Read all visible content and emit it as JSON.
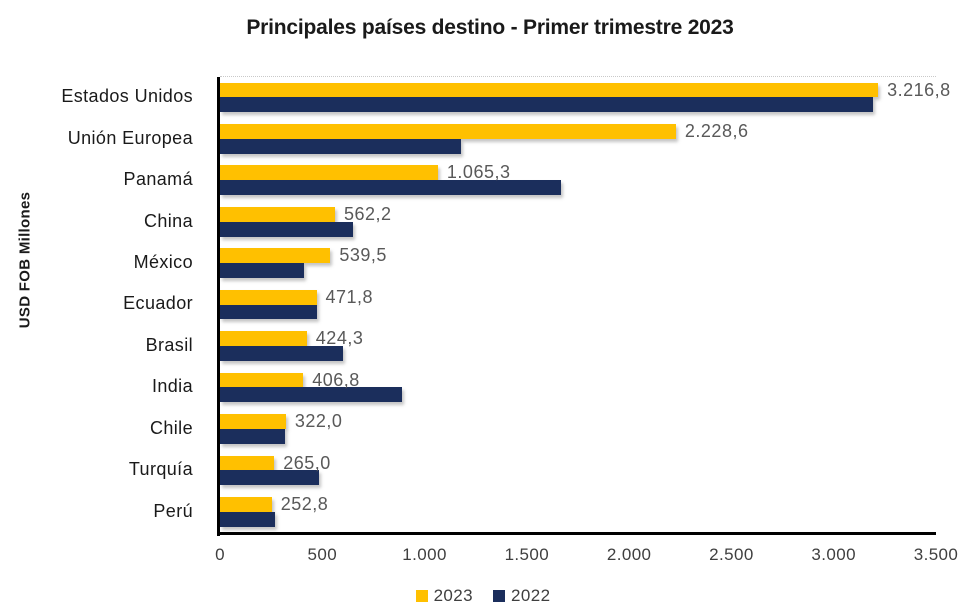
{
  "chart_data": {
    "type": "bar",
    "orientation": "horizontal",
    "title": "Principales países destino - Primer trimestre 2023",
    "xlabel": "",
    "ylabel": "USD FOB Millones",
    "xlim": [
      0,
      3500
    ],
    "grid": false,
    "categories": [
      "Estados Unidos",
      "Unión Europea",
      "Panamá",
      "China",
      "México",
      "Ecuador",
      "Brasil",
      "India",
      "Chile",
      "Turquía",
      "Perú"
    ],
    "series": [
      {
        "name": "2023",
        "color": "#FFC000",
        "values": [
          3216.8,
          2228.6,
          1065.3,
          562.2,
          539.5,
          471.8,
          424.3,
          406.8,
          322.0,
          265.0,
          252.8
        ],
        "data_labels": [
          "3.216,8",
          "2.228,6",
          "1.065,3",
          "562,2",
          "539,5",
          "471,8",
          "424,3",
          "406,8",
          "322,0",
          "265,0",
          "252,8"
        ]
      },
      {
        "name": "2022",
        "color": "#1B2E5C",
        "values": [
          3190,
          1180,
          1665,
          650,
          410,
          475,
          600,
          890,
          317,
          485,
          270
        ],
        "data_labels": null,
        "values_estimated_from_pixels": true
      }
    ],
    "x_ticks": [
      {
        "value": 0,
        "label": "0"
      },
      {
        "value": 500,
        "label": "500"
      },
      {
        "value": 1000,
        "label": "1.000"
      },
      {
        "value": 1500,
        "label": "1.500"
      },
      {
        "value": 2000,
        "label": "2.000"
      },
      {
        "value": 2500,
        "label": "2.500"
      },
      {
        "value": 3000,
        "label": "3.000"
      },
      {
        "value": 3500,
        "label": "3.500"
      }
    ],
    "legend": {
      "position": "bottom",
      "entries": [
        "2023",
        "2022"
      ]
    }
  },
  "colors": {
    "background": "#ffffff",
    "bar_2023": "#FFC000",
    "bar_2022": "#1B2E5C",
    "title_text": "#1a1a1a",
    "category_text": "#1a1a1a",
    "data_label_text": "#595959",
    "tick_text": "#3f3f3f"
  }
}
